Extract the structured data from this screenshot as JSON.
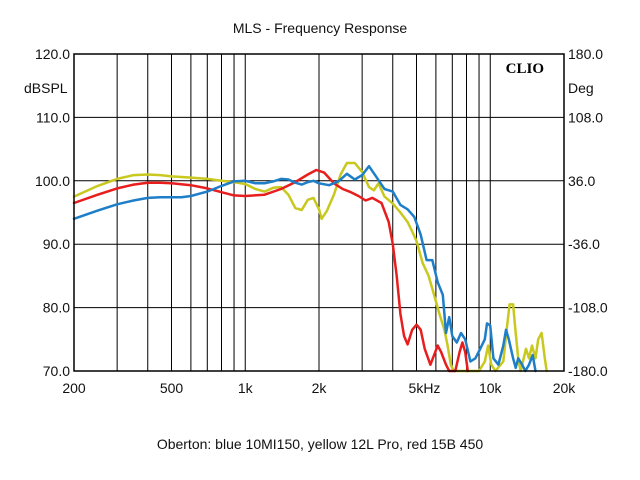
{
  "chart_data": {
    "type": "line",
    "title": "MLS - Frequency Response",
    "caption": "Oberton: blue 10MI150, yellow 12L Pro, red 15B 450",
    "brand": "CLIO",
    "y_left_unit": "dBSPL",
    "y_right_unit": "Deg",
    "x_scale": "log",
    "xlim": [
      200,
      20000
    ],
    "ylim": [
      70,
      120
    ],
    "y2lim": [
      -180,
      180
    ],
    "x_ticks": [
      {
        "value": 200,
        "label": "200"
      },
      {
        "value": 500,
        "label": "500"
      },
      {
        "value": 1000,
        "label": "1k"
      },
      {
        "value": 2000,
        "label": "2k"
      },
      {
        "value": 5000,
        "label": "5kHz"
      },
      {
        "value": 10000,
        "label": "10k"
      },
      {
        "value": 20000,
        "label": "20k"
      }
    ],
    "y_ticks": [
      {
        "value": 120,
        "label": "120.0"
      },
      {
        "value": 110,
        "label": "110.0"
      },
      {
        "value": 100,
        "label": "100.0"
      },
      {
        "value": 90,
        "label": "90.0"
      },
      {
        "value": 80,
        "label": "80.0"
      },
      {
        "value": 70,
        "label": "70.0"
      }
    ],
    "y2_ticks": [
      {
        "value": 180,
        "label": "180.0"
      },
      {
        "value": 108,
        "label": "108.0"
      },
      {
        "value": 36,
        "label": "36.0"
      },
      {
        "value": -36,
        "label": "-36.0"
      },
      {
        "value": -108,
        "label": "-108.0"
      },
      {
        "value": -180,
        "label": "-180.0"
      }
    ],
    "grid": true,
    "series": [
      {
        "color": "#c8c81e",
        "points": [
          [
            200,
            97.5
          ],
          [
            250,
            99.2
          ],
          [
            300,
            100.3
          ],
          [
            350,
            100.9
          ],
          [
            400,
            101
          ],
          [
            450,
            100.9
          ],
          [
            500,
            100.7
          ],
          [
            550,
            100.6
          ],
          [
            600,
            100.5
          ],
          [
            700,
            100.3
          ],
          [
            800,
            100
          ],
          [
            900,
            99.8
          ],
          [
            1000,
            99.5
          ],
          [
            1100,
            98.7
          ],
          [
            1200,
            98.3
          ],
          [
            1300,
            98.9
          ],
          [
            1400,
            99
          ],
          [
            1500,
            97.8
          ],
          [
            1600,
            95.7
          ],
          [
            1700,
            95.4
          ],
          [
            1800,
            97
          ],
          [
            1900,
            97.3
          ],
          [
            2000,
            95.5
          ],
          [
            2050,
            94
          ],
          [
            2150,
            95.2
          ],
          [
            2300,
            97.8
          ],
          [
            2450,
            101
          ],
          [
            2600,
            102.8
          ],
          [
            2800,
            102.8
          ],
          [
            3000,
            101.4
          ],
          [
            3200,
            99
          ],
          [
            3350,
            98.5
          ],
          [
            3500,
            99.6
          ],
          [
            3700,
            97.5
          ],
          [
            4000,
            96.4
          ],
          [
            4300,
            95
          ],
          [
            4600,
            93.5
          ],
          [
            4800,
            92
          ],
          [
            5000,
            90.5
          ],
          [
            5300,
            87
          ],
          [
            5600,
            85
          ],
          [
            5900,
            82
          ],
          [
            6200,
            79
          ],
          [
            6500,
            76.5
          ],
          [
            6700,
            74
          ],
          [
            6900,
            71
          ],
          [
            7100,
            70
          ],
          [
            9000,
            70
          ],
          [
            9500,
            71.5
          ],
          [
            9800,
            74
          ],
          [
            10100,
            71
          ],
          [
            10500,
            70
          ],
          [
            11300,
            71.5
          ],
          [
            11700,
            77
          ],
          [
            12000,
            80.5
          ],
          [
            12400,
            80.5
          ],
          [
            12700,
            76
          ],
          [
            13000,
            72
          ],
          [
            13300,
            70
          ],
          [
            13700,
            72
          ],
          [
            14000,
            73.5
          ],
          [
            14400,
            72
          ],
          [
            14800,
            74
          ],
          [
            15300,
            72
          ],
          [
            15700,
            75
          ],
          [
            16200,
            76
          ],
          [
            16700,
            72
          ],
          [
            17000,
            70
          ]
        ]
      },
      {
        "color": "#e81e1e",
        "points": [
          [
            200,
            96.5
          ],
          [
            250,
            97.8
          ],
          [
            300,
            98.8
          ],
          [
            350,
            99.4
          ],
          [
            400,
            99.7
          ],
          [
            450,
            99.7
          ],
          [
            500,
            99.6
          ],
          [
            600,
            99.3
          ],
          [
            700,
            98.8
          ],
          [
            800,
            98.2
          ],
          [
            900,
            97.7
          ],
          [
            1000,
            97.6
          ],
          [
            1200,
            97.8
          ],
          [
            1400,
            98.7
          ],
          [
            1600,
            99.8
          ],
          [
            1800,
            101
          ],
          [
            1950,
            101.7
          ],
          [
            2100,
            101.3
          ],
          [
            2300,
            99.6
          ],
          [
            2500,
            98.7
          ],
          [
            2700,
            98.2
          ],
          [
            2900,
            97.6
          ],
          [
            3100,
            96.9
          ],
          [
            3300,
            97.3
          ],
          [
            3600,
            96.5
          ],
          [
            3850,
            93.5
          ],
          [
            4000,
            90
          ],
          [
            4150,
            85
          ],
          [
            4300,
            79
          ],
          [
            4450,
            75.5
          ],
          [
            4600,
            74.2
          ],
          [
            4800,
            76.5
          ],
          [
            5000,
            77.3
          ],
          [
            5200,
            76.5
          ],
          [
            5400,
            73.5
          ],
          [
            5700,
            71
          ],
          [
            5900,
            72.5
          ],
          [
            6100,
            74
          ],
          [
            6300,
            73
          ],
          [
            6600,
            71
          ],
          [
            6800,
            70
          ],
          [
            7200,
            70
          ],
          [
            7500,
            73
          ],
          [
            7700,
            74.5
          ],
          [
            7900,
            73
          ],
          [
            8100,
            70
          ]
        ]
      },
      {
        "color": "#1e7ec8",
        "points": [
          [
            200,
            94
          ],
          [
            250,
            95.3
          ],
          [
            300,
            96.3
          ],
          [
            350,
            96.9
          ],
          [
            400,
            97.3
          ],
          [
            450,
            97.4
          ],
          [
            500,
            97.4
          ],
          [
            550,
            97.4
          ],
          [
            600,
            97.6
          ],
          [
            700,
            98.3
          ],
          [
            800,
            99.2
          ],
          [
            900,
            99.9
          ],
          [
            1000,
            100
          ],
          [
            1100,
            99.6
          ],
          [
            1200,
            99.6
          ],
          [
            1300,
            99.9
          ],
          [
            1400,
            100.3
          ],
          [
            1500,
            100.2
          ],
          [
            1600,
            99.7
          ],
          [
            1700,
            99.4
          ],
          [
            1800,
            99.8
          ],
          [
            1900,
            100
          ],
          [
            2000,
            99.6
          ],
          [
            2200,
            99.3
          ],
          [
            2400,
            99.9
          ],
          [
            2600,
            101.1
          ],
          [
            2800,
            100.2
          ],
          [
            3000,
            100.9
          ],
          [
            3200,
            102.3
          ],
          [
            3400,
            100.8
          ],
          [
            3700,
            98.7
          ],
          [
            4000,
            98.3
          ],
          [
            4300,
            96.2
          ],
          [
            4600,
            95.5
          ],
          [
            4900,
            94.3
          ],
          [
            5200,
            91.5
          ],
          [
            5500,
            87.5
          ],
          [
            5800,
            87.5
          ],
          [
            6100,
            84
          ],
          [
            6400,
            82
          ],
          [
            6600,
            76
          ],
          [
            6800,
            78.5
          ],
          [
            7000,
            75.5
          ],
          [
            7300,
            74.5
          ],
          [
            7600,
            76
          ],
          [
            7900,
            75
          ],
          [
            8300,
            71.5
          ],
          [
            8700,
            72
          ],
          [
            9100,
            73.5
          ],
          [
            9500,
            75
          ],
          [
            9700,
            77.5
          ],
          [
            10000,
            77.2
          ],
          [
            10300,
            72
          ],
          [
            10800,
            71
          ],
          [
            11300,
            74
          ],
          [
            11600,
            76.5
          ],
          [
            11900,
            75
          ],
          [
            12400,
            72
          ],
          [
            12700,
            70.5
          ],
          [
            13000,
            72
          ],
          [
            13500,
            71
          ],
          [
            13900,
            70
          ],
          [
            14400,
            71
          ],
          [
            14900,
            72.5
          ],
          [
            15300,
            70
          ]
        ]
      }
    ]
  }
}
